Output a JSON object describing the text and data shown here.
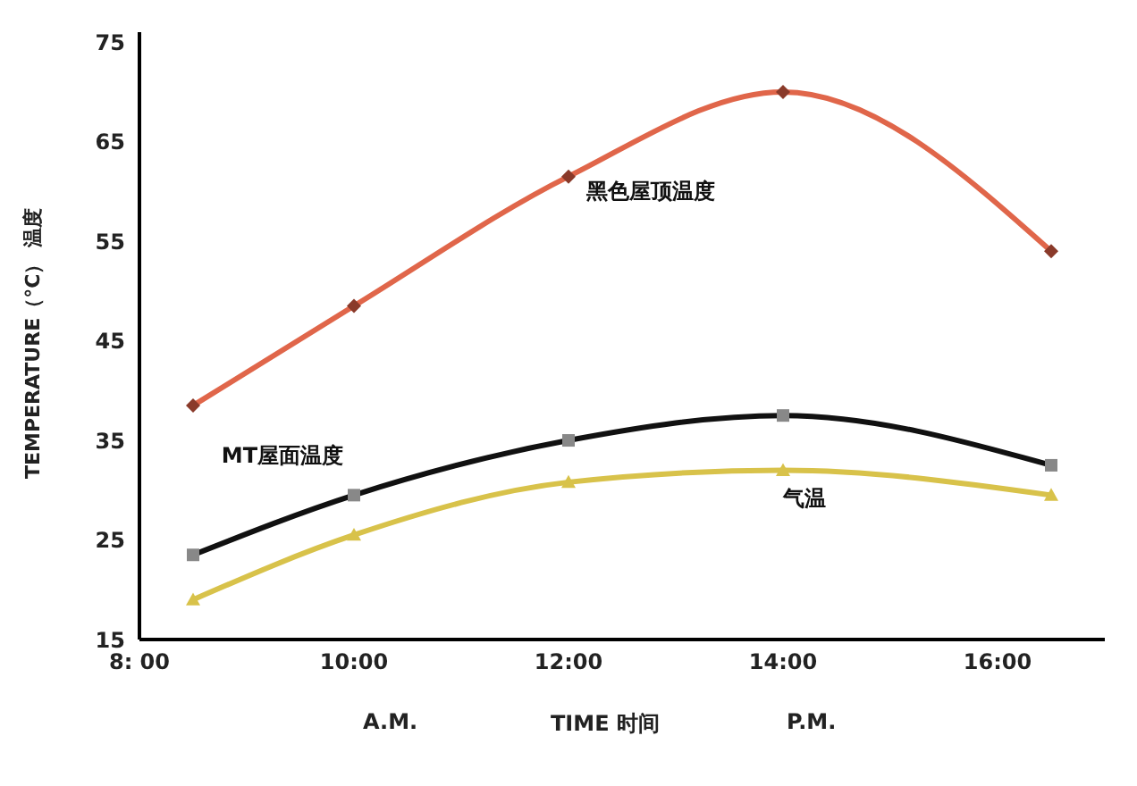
{
  "chart_data": {
    "type": "line",
    "ylabel": "TEMPERATURE（°C） 温度",
    "xlabel": "TIME 时间",
    "annotations": [
      "A.M.",
      "P.M."
    ],
    "x": [
      8.5,
      10,
      12,
      14,
      16.5
    ],
    "series": [
      {
        "name": "黑色屋顶温度",
        "color": "#e0664a",
        "values": [
          38.5,
          48.5,
          61.5,
          70,
          54
        ],
        "marker": "diamond"
      },
      {
        "name": "MT屋面温度",
        "color": "#111111",
        "values": [
          23.5,
          29.5,
          35,
          37.5,
          32.5
        ],
        "marker": "square"
      },
      {
        "name": "气温",
        "color": "#d8c24a",
        "values": [
          19,
          25.5,
          30.8,
          32,
          29.5
        ],
        "marker": "triangle"
      }
    ],
    "xlim": [
      8,
      17
    ],
    "xticks": [
      {
        "value": 8,
        "label": "8: 00"
      },
      {
        "value": 10,
        "label": "10:00"
      },
      {
        "value": 12,
        "label": "12:00"
      },
      {
        "value": 14,
        "label": "14:00"
      },
      {
        "value": 16,
        "label": "16:00"
      }
    ],
    "ylim": [
      15,
      76
    ],
    "yticks": [
      15,
      25,
      35,
      45,
      55,
      65,
      75
    ],
    "grid": false,
    "legend": false
  }
}
